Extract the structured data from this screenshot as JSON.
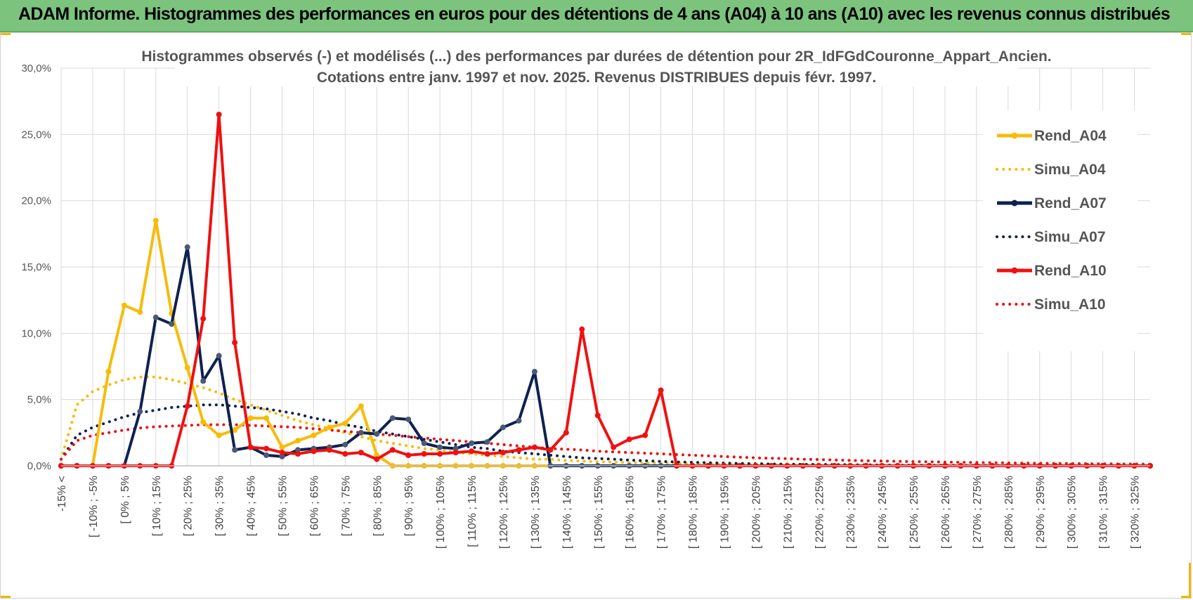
{
  "banner": {
    "title": "ADAM Informe. Histogrammes des performances en euros pour des détentions de 4 ans (A04) à 10 ans (A10) avec les revenus connus distribués"
  },
  "colors": {
    "banner_bg": "#7cc47e",
    "A04": "#f7bc0a",
    "A07": "#0e2150",
    "A10": "#f01010",
    "grid": "#d9d9d9",
    "marker_A07": "#4a5a75"
  },
  "chart_data": {
    "type": "line",
    "title_lines": [
      "Histogrammes observés (-) et modélisés (...) des performances par durées de détention pour 2R_IdFGdCouronne_Appart_Ancien.",
      "Cotations entre janv. 1997 et nov. 2025. Revenus DISTRIBUES depuis févr. 1997."
    ],
    "ylim": [
      0,
      30
    ],
    "yticks": [
      0,
      5,
      10,
      15,
      20,
      25,
      30
    ],
    "ytick_labels": [
      "0,0%",
      "5,0%",
      "10,0%",
      "15,0%",
      "20,0%",
      "25,0%",
      "30,0%"
    ],
    "category_count": 70,
    "x_tick_labels": [
      "-15% <",
      "[ -10% ; -5%",
      "[ 0% ; 5%",
      "[ 10% ; 15%",
      "[ 20% ; 25%",
      "[ 30% ; 35%",
      "[ 40% ; 45%",
      "[ 50% ; 55%",
      "[ 60% ; 65%",
      "[ 70% ; 75%",
      "[ 80% ; 85%",
      "[ 90% ; 95%",
      "[ 100% ; 105%",
      "[ 110% ; 115%",
      "[ 120% ; 125%",
      "[ 130% ; 135%",
      "[ 140% ; 145%",
      "[ 150% ; 155%",
      "[ 160% ; 165%",
      "[ 170% ; 175%",
      "[ 180% ; 185%",
      "[ 190% ; 195%",
      "[ 200% ; 205%",
      "[ 210% ; 215%",
      "[ 220% ; 225%",
      "[ 230% ; 235%",
      "[ 240% ; 245%",
      "[ 250% ; 255%",
      "[ 260% ; 265%",
      "[ 270% ; 275%",
      "[ 280% ; 285%",
      "[ 290% ; 295%",
      "[ 300% ; 305%",
      "[ 310% ; 315%",
      "[ 320% ; 325%"
    ],
    "x_tick_step": 2,
    "series": [
      {
        "name": "Rend_A04",
        "style": "solid",
        "color": "#f7bc0a",
        "marker": true,
        "values": [
          0,
          0,
          0,
          7.1,
          12.1,
          11.6,
          18.5,
          11.5,
          7.4,
          3.3,
          2.3,
          2.7,
          3.6,
          3.6,
          1.4,
          1.9,
          2.3,
          2.9,
          3.2,
          4.5,
          0.8,
          0,
          0,
          0,
          0,
          0,
          0,
          0,
          0,
          0,
          0,
          0,
          0,
          0,
          0,
          0,
          0,
          0,
          0,
          0,
          0,
          0,
          0,
          0,
          0,
          0,
          0,
          0,
          0,
          0,
          0,
          0,
          0,
          0,
          0,
          0,
          0,
          0,
          0,
          0,
          0,
          0,
          0,
          0,
          0,
          0,
          0,
          0,
          0,
          0
        ]
      },
      {
        "name": "Simu_A04",
        "style": "dotted",
        "color": "#f7bc0a",
        "marker": false,
        "values": [
          0.5,
          4.6,
          5.6,
          6.1,
          6.5,
          6.7,
          6.7,
          6.5,
          6.2,
          5.9,
          5.5,
          5.0,
          4.6,
          4.2,
          3.8,
          3.4,
          3.1,
          2.8,
          2.5,
          2.2,
          1.9,
          1.7,
          1.5,
          1.3,
          1.2,
          1.0,
          0.9,
          0.8,
          0.7,
          0.6,
          0.5,
          0.5,
          0.4,
          0.35,
          0.3,
          0.27,
          0.24,
          0.21,
          0.19,
          0.17,
          0.15,
          0.13,
          0.12,
          0.1,
          0.1,
          0.09,
          0.08,
          0.07,
          0.06,
          0.05,
          0.05,
          0.05,
          0.04,
          0.04,
          0.03,
          0.03,
          0.03,
          0.02,
          0.02,
          0.02,
          0.02,
          0.02,
          0.01,
          0.01,
          0.01,
          0.01,
          0.01,
          0.01,
          0.01,
          0.01
        ]
      },
      {
        "name": "Rend_A07",
        "style": "solid",
        "color": "#0e2150",
        "marker": true,
        "values": [
          0,
          0,
          0,
          0,
          0,
          4.1,
          11.2,
          10.7,
          16.5,
          6.4,
          8.3,
          1.2,
          1.4,
          0.8,
          0.7,
          1.2,
          1.3,
          1.4,
          1.6,
          2.5,
          2.4,
          3.6,
          3.5,
          1.7,
          1.4,
          1.3,
          1.7,
          1.8,
          2.9,
          3.4,
          7.1,
          0,
          0,
          0,
          0,
          0,
          0,
          0,
          0,
          0,
          0,
          0,
          0,
          0,
          0,
          0,
          0,
          0,
          0,
          0,
          0,
          0,
          0,
          0,
          0,
          0,
          0,
          0,
          0,
          0,
          0,
          0,
          0,
          0,
          0,
          0,
          0,
          0,
          0,
          0
        ]
      },
      {
        "name": "Simu_A07",
        "style": "dotted",
        "color": "#0e2150",
        "marker": false,
        "values": [
          0.5,
          2.3,
          2.9,
          3.3,
          3.7,
          4.0,
          4.2,
          4.4,
          4.5,
          4.6,
          4.6,
          4.5,
          4.4,
          4.3,
          4.1,
          3.9,
          3.6,
          3.4,
          3.1,
          2.9,
          2.6,
          2.4,
          2.2,
          2.0,
          1.8,
          1.6,
          1.4,
          1.3,
          1.1,
          1.0,
          0.9,
          0.8,
          0.7,
          0.6,
          0.55,
          0.5,
          0.43,
          0.38,
          0.33,
          0.29,
          0.26,
          0.23,
          0.2,
          0.18,
          0.16,
          0.14,
          0.12,
          0.11,
          0.1,
          0.09,
          0.08,
          0.07,
          0.06,
          0.05,
          0.05,
          0.04,
          0.04,
          0.03,
          0.03,
          0.03,
          0.02,
          0.02,
          0.02,
          0.02,
          0.02,
          0.01,
          0.01,
          0.01,
          0.01,
          0.01
        ]
      },
      {
        "name": "Rend_A10",
        "style": "solid",
        "color": "#f01010",
        "marker": true,
        "values": [
          0,
          0,
          0,
          0,
          0,
          0,
          0,
          0,
          4.5,
          11.1,
          26.5,
          9.3,
          1.4,
          1.3,
          1.0,
          0.9,
          1.1,
          1.2,
          0.9,
          1.0,
          0.5,
          1.2,
          0.8,
          0.9,
          0.9,
          1.0,
          1.1,
          0.9,
          1.0,
          1.2,
          1.4,
          1.2,
          2.5,
          10.3,
          3.8,
          1.4,
          2.0,
          2.3,
          5.7,
          0,
          0,
          0,
          0,
          0,
          0,
          0,
          0,
          0,
          0,
          0,
          0,
          0,
          0,
          0,
          0,
          0,
          0,
          0,
          0,
          0,
          0,
          0,
          0,
          0,
          0,
          0,
          0,
          0,
          0,
          0
        ]
      },
      {
        "name": "Simu_A10",
        "style": "dotted",
        "color": "#f01010",
        "marker": false,
        "values": [
          0.5,
          1.9,
          2.3,
          2.5,
          2.7,
          2.85,
          2.95,
          3.0,
          3.05,
          3.1,
          3.1,
          3.1,
          3.05,
          3.0,
          2.95,
          2.9,
          2.8,
          2.7,
          2.6,
          2.5,
          2.4,
          2.3,
          2.2,
          2.1,
          2.0,
          1.9,
          1.8,
          1.7,
          1.6,
          1.5,
          1.4,
          1.3,
          1.25,
          1.2,
          1.1,
          1.05,
          1.0,
          0.95,
          0.9,
          0.85,
          0.8,
          0.75,
          0.7,
          0.65,
          0.6,
          0.57,
          0.54,
          0.5,
          0.47,
          0.44,
          0.41,
          0.38,
          0.36,
          0.34,
          0.32,
          0.3,
          0.28,
          0.26,
          0.25,
          0.23,
          0.22,
          0.2,
          0.19,
          0.18,
          0.17,
          0.16,
          0.15,
          0.14,
          0.13,
          0.12
        ]
      }
    ],
    "legend": [
      {
        "label": "Rend_A04",
        "series": 0
      },
      {
        "label": "Simu_A04",
        "series": 1
      },
      {
        "label": "Rend_A07",
        "series": 2
      },
      {
        "label": "Simu_A07",
        "series": 3
      },
      {
        "label": "Rend_A10",
        "series": 4
      },
      {
        "label": "Simu_A10",
        "series": 5
      }
    ],
    "legend_position": "right"
  }
}
